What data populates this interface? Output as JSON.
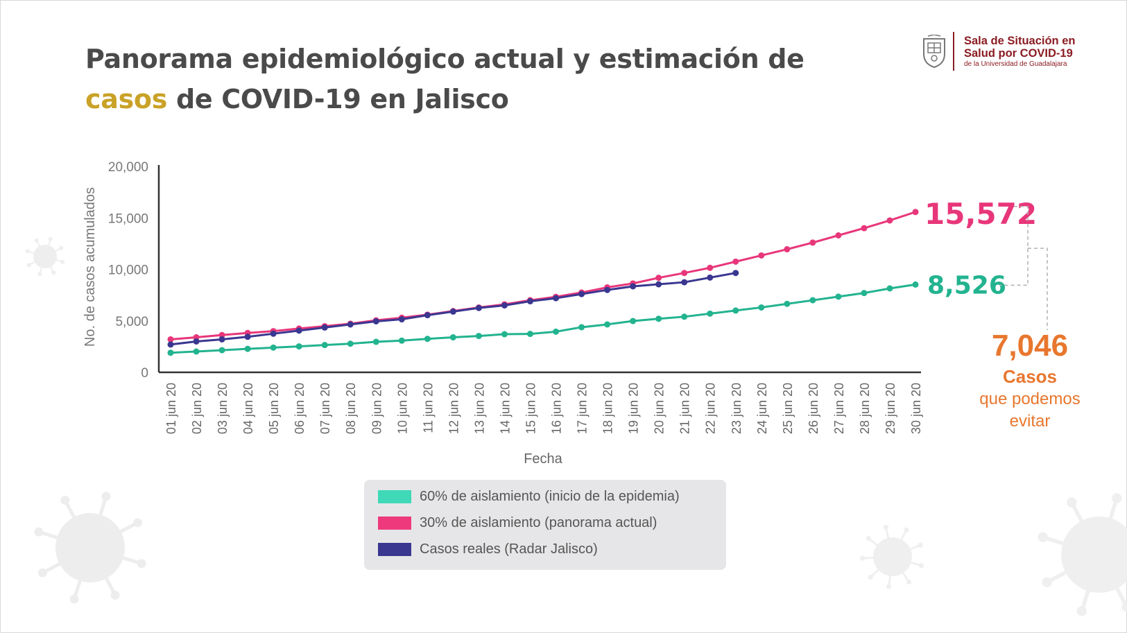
{
  "header": {
    "title_part1": "Panorama epidemiológico actual y estimación de ",
    "title_highlight": "casos",
    "title_part2": " de COVID-19 en Jalisco",
    "highlight_color": "#c9a227"
  },
  "logo": {
    "line1": "Sala de Situación en",
    "line2": "Salud por COVID-19",
    "line3": "de la Universidad de Guadalajara",
    "icon": "udg-crest-icon",
    "color": "#8a1c22"
  },
  "chart_data": {
    "type": "line",
    "ylabel": "No. de casos acumulados",
    "xlabel": "Fecha",
    "ylim": [
      0,
      20000
    ],
    "yticks": [
      "0",
      "5,000",
      "10,000",
      "15,000",
      "20,000"
    ],
    "ytick_values": [
      0,
      5000,
      10000,
      15000,
      20000
    ],
    "categories": [
      "01 jun 20",
      "02 jun 20",
      "03 jun 20",
      "04 jun 20",
      "05 jun 20",
      "06 jun 20",
      "07 jun 20",
      "08 jun 20",
      "09 jun 20",
      "10 jun 20",
      "11 jun 20",
      "12 jun 20",
      "13 jun 20",
      "14 jun 20",
      "15 jun 20",
      "16 jun 20",
      "17 jun 20",
      "18 jun 20",
      "19 jun 20",
      "20 jun 20",
      "21 jun 20",
      "22 jun 20",
      "23 jun 20",
      "24 jun 20",
      "25 jun 20",
      "26 jun 20",
      "27 jun 20",
      "28 jun 20",
      "29 jun 20",
      "30 jun 20"
    ],
    "series": [
      {
        "name": "60% de aislamiento (inicio de la epidemia)",
        "color": "#22b38f",
        "legend_color": "#3fd9b8",
        "values": [
          1900,
          2020,
          2150,
          2280,
          2400,
          2520,
          2650,
          2780,
          2960,
          3080,
          3250,
          3400,
          3530,
          3700,
          3730,
          3950,
          4380,
          4650,
          4980,
          5200,
          5400,
          5700,
          6000,
          6300,
          6650,
          7000,
          7350,
          7700,
          8150,
          8526
        ]
      },
      {
        "name": "30% de aislamiento (panorama actual)",
        "color": "#e8367a",
        "legend_color": "#ee3a7c",
        "values": [
          3200,
          3400,
          3620,
          3820,
          4000,
          4250,
          4480,
          4720,
          5050,
          5300,
          5600,
          5950,
          6300,
          6600,
          7000,
          7330,
          7750,
          8250,
          8630,
          9180,
          9650,
          10150,
          10750,
          11350,
          11950,
          12600,
          13300,
          14000,
          14750,
          15572
        ]
      },
      {
        "name": "Casos reales (Radar Jalisco)",
        "color": "#3a3791",
        "legend_color": "#3a3791",
        "values": [
          2700,
          3000,
          3200,
          3450,
          3750,
          4050,
          4350,
          4650,
          4950,
          5150,
          5550,
          5900,
          6250,
          6500,
          6900,
          7200,
          7600,
          8000,
          8350,
          8550,
          8750,
          9200,
          9650,
          null,
          null,
          null,
          null,
          null,
          null,
          null
        ]
      }
    ],
    "annotations": [
      {
        "text": "15,572",
        "series": 1,
        "color": "#e8367a"
      },
      {
        "text": "8,526",
        "series": 0,
        "color": "#22b38f"
      }
    ]
  },
  "difference": {
    "value": "7,046",
    "label": "Casos",
    "sub1": "que podemos",
    "sub2": "evitar",
    "color": "#e8772e"
  }
}
